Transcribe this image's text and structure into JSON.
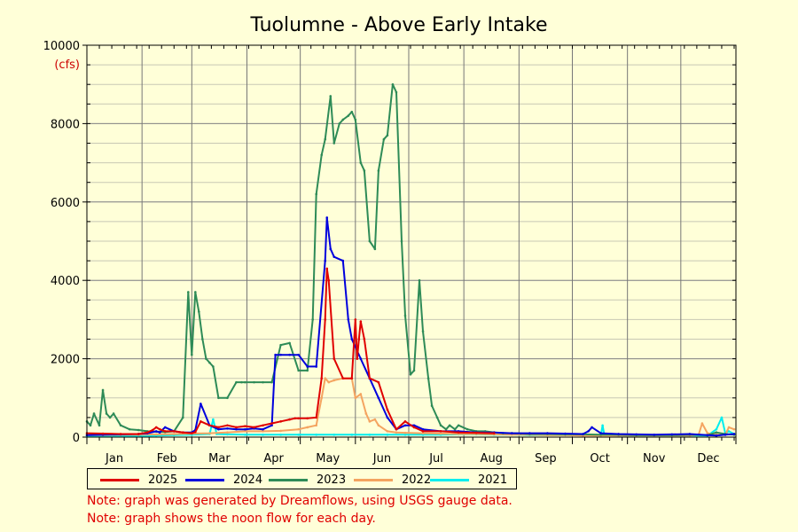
{
  "chart_data": {
    "type": "line",
    "title": "Tuolumne - Above Early Intake",
    "y_unit": "(cfs)",
    "ylim": [
      0,
      10000
    ],
    "y_ticks": [
      0,
      2000,
      4000,
      6000,
      8000,
      10000
    ],
    "x_unit": "day_of_year",
    "xlim": [
      1,
      366
    ],
    "month_labels": [
      "Jan",
      "Feb",
      "Mar",
      "Apr",
      "May",
      "Jun",
      "Jul",
      "Aug",
      "Sep",
      "Oct",
      "Nov",
      "Dec"
    ],
    "grid": true,
    "legend_placement": "bottom-left",
    "series": [
      {
        "name": "2025",
        "color": "#e00000",
        "x": [
          1,
          10,
          20,
          30,
          35,
          38,
          40,
          42,
          45,
          50,
          55,
          60,
          62,
          65,
          70,
          75,
          80,
          85,
          90,
          95,
          100,
          105,
          110,
          115,
          118,
          120,
          125,
          130,
          133,
          135,
          136,
          137,
          140,
          145,
          150,
          152,
          153,
          154,
          155,
          157,
          160,
          165,
          170,
          175,
          180,
          185,
          190,
          200,
          210,
          220,
          230
        ],
        "y": [
          100,
          90,
          80,
          80,
          120,
          180,
          250,
          200,
          150,
          150,
          120,
          100,
          130,
          400,
          300,
          250,
          300,
          250,
          280,
          250,
          300,
          350,
          400,
          450,
          480,
          480,
          480,
          500,
          1500,
          3000,
          4300,
          4000,
          2000,
          1500,
          1500,
          3000,
          2000,
          2500,
          2950,
          2500,
          1500,
          1400,
          700,
          200,
          400,
          250,
          150,
          150,
          120,
          110,
          100
        ]
      },
      {
        "name": "2024",
        "color": "#0000dd",
        "x": [
          1,
          10,
          20,
          30,
          35,
          40,
          42,
          45,
          50,
          55,
          60,
          62,
          65,
          70,
          75,
          80,
          85,
          90,
          95,
          100,
          105,
          107,
          110,
          115,
          120,
          125,
          130,
          135,
          136,
          138,
          140,
          145,
          148,
          150,
          155,
          160,
          165,
          170,
          175,
          180,
          185,
          190,
          200,
          210,
          220,
          230,
          240,
          250,
          260,
          270,
          280,
          283,
          285,
          290,
          300,
          310,
          320,
          330,
          340,
          350,
          355,
          360,
          365
        ],
        "y": [
          50,
          60,
          70,
          80,
          100,
          150,
          120,
          250,
          150,
          120,
          120,
          180,
          850,
          300,
          200,
          220,
          200,
          200,
          220,
          200,
          300,
          2100,
          2100,
          2100,
          2100,
          1800,
          1800,
          4500,
          5600,
          4800,
          4600,
          4500,
          3000,
          2500,
          2000,
          1500,
          1000,
          500,
          200,
          300,
          300,
          200,
          150,
          150,
          120,
          120,
          100,
          100,
          100,
          90,
          80,
          150,
          250,
          100,
          80,
          70,
          60,
          70,
          80,
          50,
          40,
          60,
          80
        ]
      },
      {
        "name": "2023",
        "color": "#2e8b57",
        "x": [
          1,
          3,
          5,
          8,
          10,
          12,
          14,
          16,
          20,
          25,
          30,
          35,
          40,
          45,
          50,
          55,
          58,
          60,
          62,
          64,
          66,
          68,
          70,
          72,
          75,
          80,
          85,
          88,
          90,
          95,
          100,
          105,
          110,
          115,
          120,
          125,
          128,
          130,
          133,
          135,
          138,
          140,
          143,
          145,
          148,
          150,
          152,
          155,
          157,
          160,
          163,
          165,
          168,
          170,
          173,
          175,
          178,
          180,
          183,
          185,
          188,
          190,
          193,
          195,
          198,
          200,
          203,
          205,
          208,
          210,
          215,
          220,
          225,
          230,
          235,
          240,
          245,
          250,
          260,
          270,
          280,
          290,
          300,
          310,
          320,
          330,
          340,
          350,
          355,
          360,
          365
        ],
        "y": [
          400,
          300,
          600,
          300,
          1200,
          600,
          500,
          600,
          300,
          200,
          180,
          150,
          140,
          130,
          150,
          500,
          3700,
          2100,
          3700,
          3200,
          2500,
          2000,
          1900,
          1800,
          1000,
          1000,
          1400,
          1400,
          1400,
          1400,
          1400,
          1400,
          2350,
          2400,
          1700,
          1700,
          3000,
          6200,
          7200,
          7600,
          8700,
          7500,
          8000,
          8100,
          8200,
          8300,
          8100,
          7000,
          6800,
          5000,
          4800,
          6800,
          7600,
          7700,
          9000,
          8800,
          5000,
          3100,
          1600,
          1700,
          4000,
          2700,
          1500,
          800,
          500,
          300,
          200,
          300,
          200,
          300,
          200,
          150,
          150,
          120,
          100,
          100,
          90,
          80,
          80,
          70,
          70,
          60,
          60,
          50,
          50,
          50,
          60,
          50,
          120,
          80,
          60
        ]
      },
      {
        "name": "2022",
        "color": "#f4a460",
        "x": [
          1,
          10,
          20,
          30,
          40,
          50,
          60,
          70,
          80,
          90,
          100,
          110,
          120,
          125,
          130,
          133,
          135,
          137,
          140,
          145,
          150,
          152,
          155,
          158,
          160,
          163,
          165,
          170,
          175,
          180,
          190,
          200,
          210,
          220,
          230,
          240,
          250,
          260,
          270,
          280,
          290,
          300,
          310,
          320,
          330,
          340,
          345,
          347,
          350,
          355,
          360,
          362,
          365
        ],
        "y": [
          50,
          50,
          60,
          60,
          70,
          80,
          90,
          100,
          120,
          150,
          150,
          160,
          200,
          250,
          300,
          1000,
          1500,
          1400,
          1450,
          1500,
          1500,
          1000,
          1100,
          600,
          400,
          450,
          300,
          150,
          120,
          110,
          100,
          90,
          80,
          80,
          70,
          60,
          60,
          50,
          50,
          40,
          40,
          40,
          40,
          40,
          40,
          40,
          60,
          350,
          100,
          60,
          60,
          250,
          200
        ]
      },
      {
        "name": "2021",
        "color": "#00eeee",
        "x": [
          1,
          10,
          20,
          30,
          40,
          50,
          60,
          70,
          72,
          74,
          80,
          90,
          100,
          110,
          120,
          130,
          140,
          150,
          160,
          170,
          180,
          190,
          200,
          210,
          220,
          230,
          240,
          250,
          260,
          270,
          280,
          290,
          291,
          292,
          300,
          310,
          320,
          330,
          340,
          350,
          355,
          358,
          360,
          362,
          365
        ],
        "y": [
          30,
          30,
          30,
          30,
          40,
          50,
          60,
          80,
          450,
          80,
          70,
          60,
          60,
          60,
          60,
          60,
          60,
          60,
          60,
          60,
          60,
          60,
          60,
          70,
          70,
          60,
          60,
          50,
          50,
          50,
          50,
          40,
          300,
          50,
          40,
          40,
          40,
          40,
          40,
          40,
          200,
          500,
          100,
          150,
          80
        ]
      }
    ]
  },
  "notes": [
    "Note: graph was generated by Dreamflows, using USGS gauge data.",
    "Note: graph shows the noon flow for each day."
  ]
}
